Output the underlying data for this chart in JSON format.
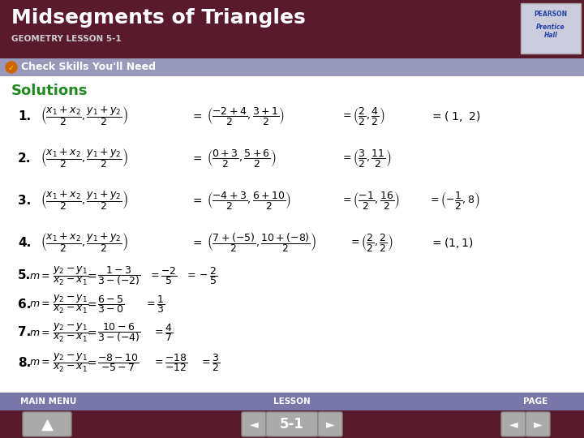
{
  "title": "Midsegments of Triangles",
  "subtitle": "GEOMETRY LESSON 5-1",
  "section": "Check Skills You'll Need",
  "solutions_label": "Solutions",
  "header_bg": "#5a1a2e",
  "header_text_color": "#ffffff",
  "subtitle_color": "#cccccc",
  "section_bg": "#9999bb",
  "section_icon_color": "#dd8800",
  "solutions_color": "#228822",
  "body_bg": "#ffffff",
  "footer_bg": "#7777aa",
  "footer_bottom_bg": "#5a1a2e",
  "footer_text_color": "#ffffff",
  "footer_labels": [
    "MAIN MENU",
    "LESSON",
    "PAGE"
  ],
  "page_label": "5-1",
  "pearson_box_color": "#cccccc"
}
